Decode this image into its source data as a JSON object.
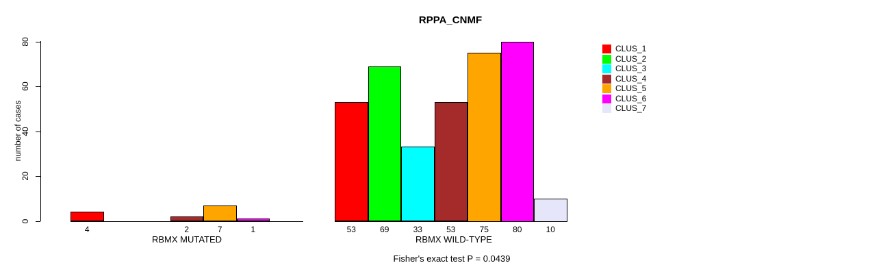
{
  "chart_data": {
    "type": "bar",
    "title": "RPPA_CNMF",
    "ylabel": "number of cases",
    "ylim": [
      0,
      80
    ],
    "yticks": [
      0,
      20,
      40,
      60,
      80
    ],
    "grid": false,
    "legend_position": "right",
    "axis_color": "#000000",
    "clusters": [
      {
        "name": "CLUS_1",
        "color": "#ff0000"
      },
      {
        "name": "CLUS_2",
        "color": "#00ff00"
      },
      {
        "name": "CLUS_3",
        "color": "#00ffff"
      },
      {
        "name": "CLUS_4",
        "color": "#a52a2a"
      },
      {
        "name": "CLUS_5",
        "color": "#ffa500"
      },
      {
        "name": "CLUS_6",
        "color": "#ff00ff"
      },
      {
        "name": "CLUS_7",
        "color": "#e6e6fa"
      }
    ],
    "groups": [
      {
        "label": "RBMX MUTATED",
        "values": [
          4,
          0,
          0,
          2,
          7,
          1,
          0
        ]
      },
      {
        "label": "RBMX WILD-TYPE",
        "values": [
          53,
          69,
          33,
          53,
          75,
          80,
          10
        ]
      }
    ],
    "footnote": "Fisher's exact test P = 0.0439"
  }
}
